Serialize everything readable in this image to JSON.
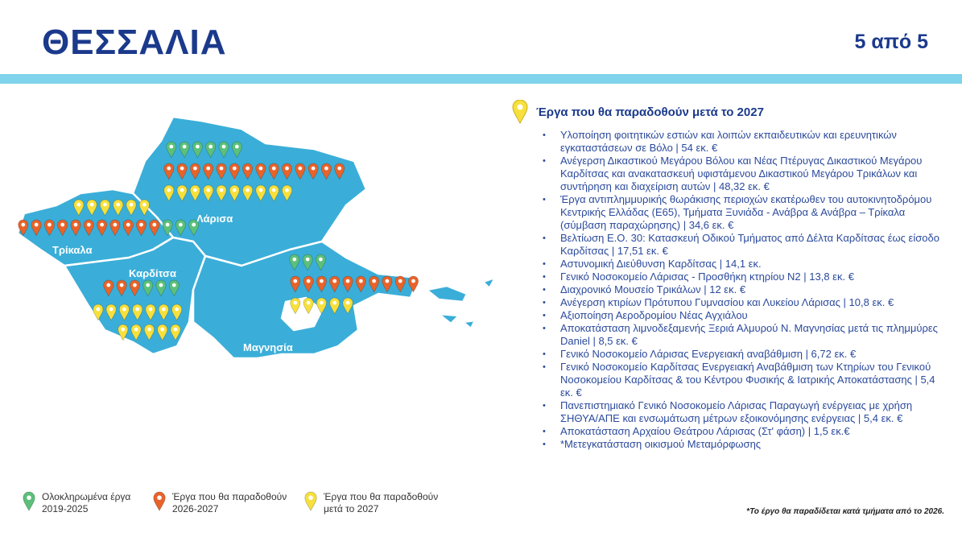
{
  "header": {
    "title": "ΘΕΣΣΑΛΙΑ",
    "pager": "5 από 5"
  },
  "colors": {
    "green": "#5cc07a",
    "orange": "#e8632a",
    "yellow": "#f7e03c",
    "map": "#3aaed8",
    "title": "#1b3a8c"
  },
  "map": {
    "regions": [
      "Λάρισα",
      "Τρίκαλα",
      "Καρδίτσα",
      "Μαγνησία"
    ],
    "pin_rows": [
      {
        "region": "Λάρισα",
        "pins": [
          [
            "green",
            6
          ]
        ]
      },
      {
        "region": "Λάρισα",
        "pins": [
          [
            "orange",
            14
          ]
        ]
      },
      {
        "region": "Λάρισα",
        "pins": [
          [
            "yellow",
            10
          ]
        ]
      },
      {
        "region": "Τρίκαλα",
        "pins": [
          [
            "yellow",
            6
          ]
        ]
      },
      {
        "region": "Τρίκαλα",
        "pins": [
          [
            "orange",
            11
          ],
          [
            "green",
            3
          ]
        ]
      },
      {
        "region": "Καρδίτσα",
        "pins": [
          [
            "orange",
            3
          ],
          [
            "green",
            3
          ]
        ]
      },
      {
        "region": "Καρδίτσα",
        "pins": [
          [
            "yellow",
            7
          ]
        ]
      },
      {
        "region": "Καρδίτσα",
        "pins": [
          [
            "yellow",
            5
          ]
        ]
      },
      {
        "region": "Μαγνησία",
        "pins": [
          [
            "green",
            3
          ]
        ]
      },
      {
        "region": "Μαγνησία",
        "pins": [
          [
            "orange",
            10
          ]
        ]
      },
      {
        "region": "Μαγνησία",
        "pins": [
          [
            "yellow",
            5
          ]
        ]
      }
    ]
  },
  "panel": {
    "heading": "Έργα που θα παραδοθούν μετά το 2027",
    "items": [
      "Υλοποίηση φοιτητικών εστιών και λοιπών εκπαιδευτικών και ερευνητικών εγκαταστάσεων σε Βόλο | 54 εκ. €",
      "Ανέγερση Δικαστικού Μεγάρου Βόλου και Νέας Πτέρυγας Δικαστικού Μεγάρου Καρδίτσας και ανακατασκευή υφιστάμενου Δικαστικού Μεγάρου Τρικάλων και συντήρηση και διαχείριση αυτών | 48,32 εκ. €",
      "Έργα αντιπλημμυρικής θωράκισης περιοχών εκατέρωθεν του αυτοκινητοδρόμου Κεντρικής Ελλάδας (Ε65), Τμήματα Ξυνιάδα - Ανάβρα & Ανάβρα – Τρίκαλα (σύμβαση παραχώρησης) | 34,6 εκ. €",
      "Βελτίωση Ε.Ο. 30: Κατασκευή Οδικού Τμήματος από Δέλτα Καρδίτσας έως είσοδο Καρδίτσας | 17,51 εκ. €",
      "Αστυνομική Διεύθυνση Καρδίτσας | 14,1 εκ.",
      "Γενικό Νοσοκομείο Λάρισας - Προσθήκη κτηρίου Ν2 | 13,8 εκ. €",
      "Διαχρονικό Μουσείο Τρικάλων | 12 εκ. €",
      "Ανέγερση κτιρίων Πρότυπου Γυμνασίου και Λυκείου Λάρισας | 10,8 εκ. €",
      "Αξιοποίηση Αεροδρομίου Νέας Αγχιάλου",
      "Αποκατάσταση λιμνοδεξαμενής Ξεριά Αλμυρού Ν. Μαγνησίας μετά τις πλημμύρες Daniel | 8,5 εκ. €",
      "Γενικό Νοσοκομείο Λάρισας Ενεργειακή αναβάθμιση | 6,72 εκ. €",
      "Γενικό Νοσοκομείο Καρδίτσας Ενεργειακή Αναβάθμιση των Κτηρίων του Γενικού Νοσοκομείου Καρδίτσας & του Κέντρου Φυσικής & Ιατρικής Αποκατάστασης | 5,4 εκ. €",
      "Πανεπιστημιακό Γενικό Νοσοκομείο Λάρισας Παραγωγή ενέργειας με χρήση ΣΗΘΥΑ/ΑΠΕ και ενσωμάτωση μέτρων εξοικονόμησης ενέργειας | 5,4 εκ. €",
      "Αποκατάσταση Αρχαίου Θεάτρου Λάρισας (Στ' φάση) | 1,5 εκ.€",
      "*Μετεγκατάσταση οικισμού Μεταμόρφωσης"
    ]
  },
  "legend": [
    {
      "color": "green",
      "line1": "Ολοκληρωμένα έργα",
      "line2": "2019-2025"
    },
    {
      "color": "orange",
      "line1": "Έργα που θα παραδοθούν",
      "line2": "2026-2027"
    },
    {
      "color": "yellow",
      "line1": "Έργα που θα παραδοθούν",
      "line2": "μετά το 2027"
    }
  ],
  "note": "*Το έργο θα παραδίδεται κατά τμήματα από το 2026."
}
